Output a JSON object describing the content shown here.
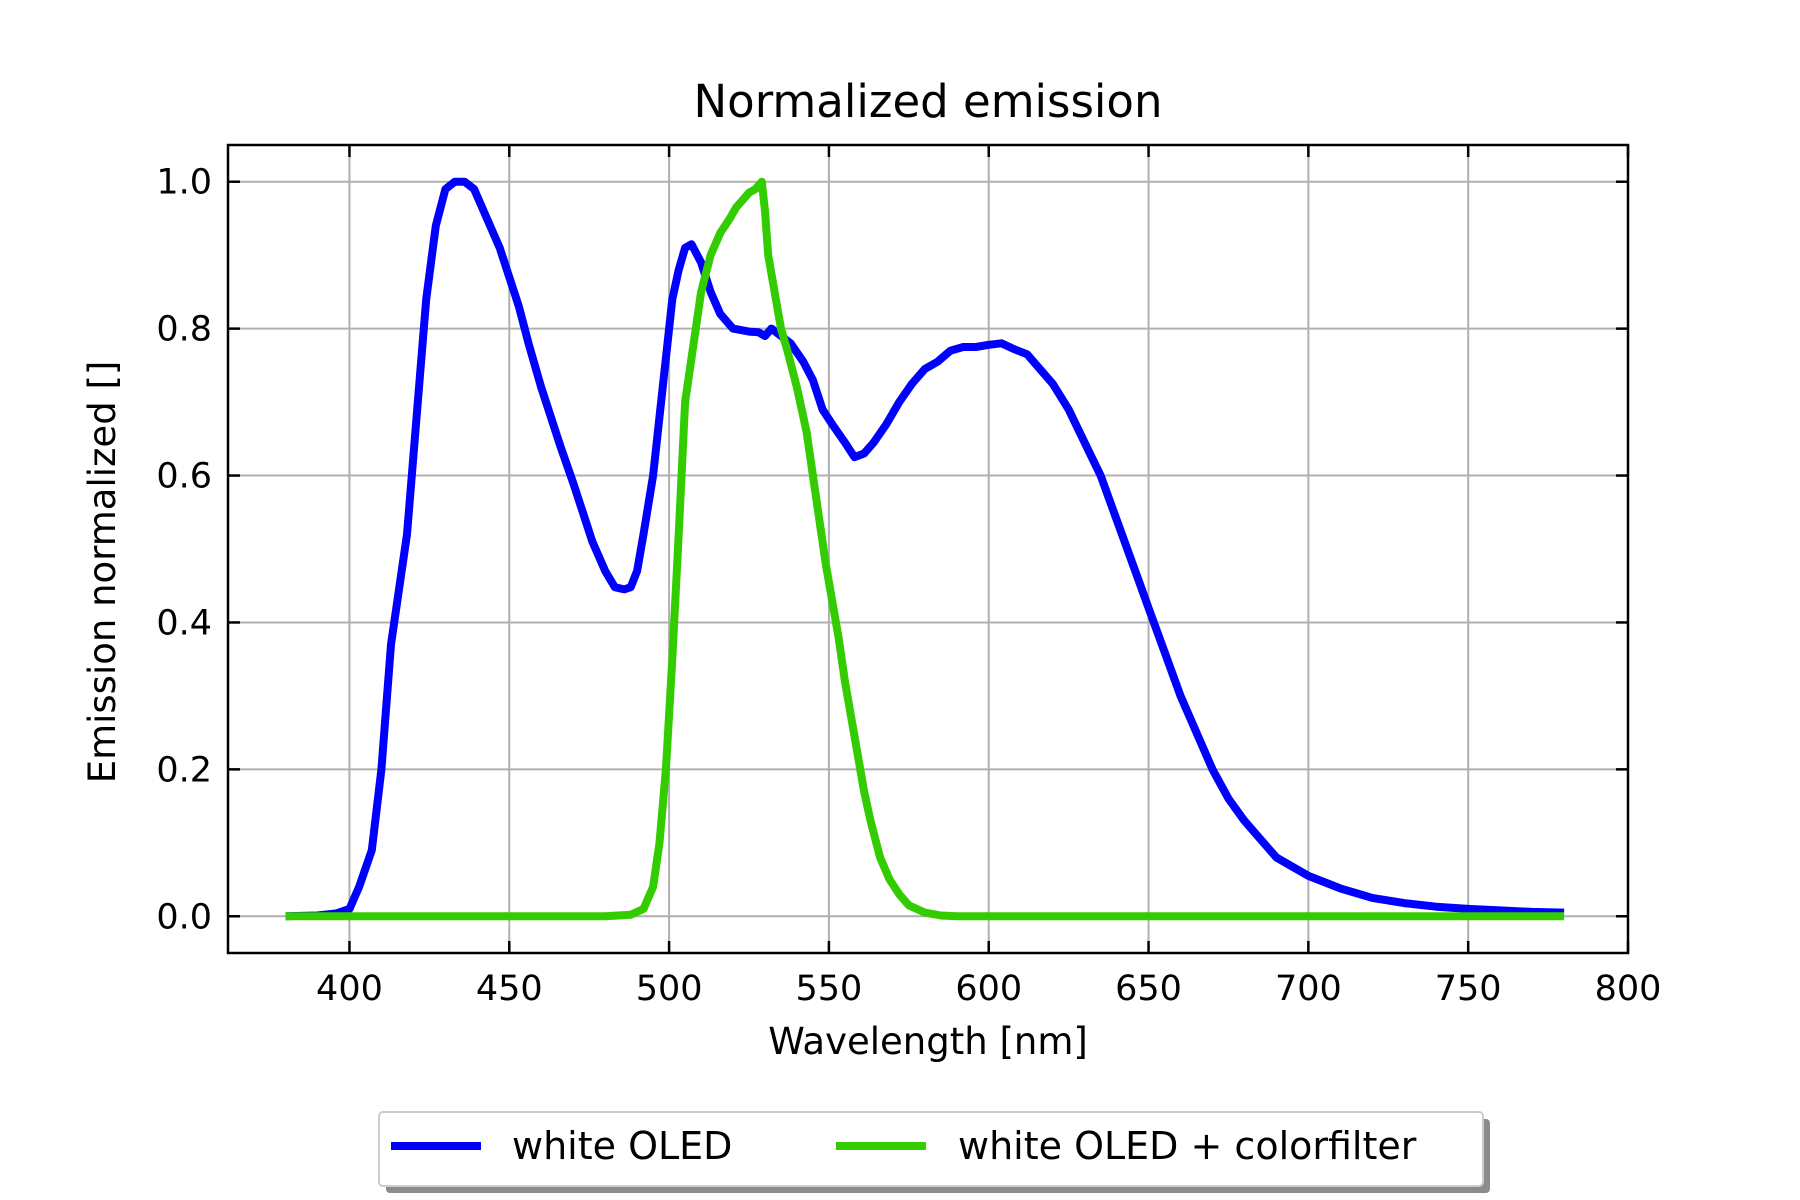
{
  "chart_data": {
    "type": "line",
    "title": "Normalized emission",
    "xlabel": "Wavelength [nm]",
    "ylabel": "Emission normalized []",
    "xlim": [
      362,
      800
    ],
    "ylim": [
      -0.05,
      1.05
    ],
    "xticks": [
      400,
      450,
      500,
      550,
      600,
      650,
      700,
      750,
      800
    ],
    "xtick_labels": [
      "400",
      "450",
      "500",
      "550",
      "600",
      "650",
      "700",
      "750",
      "800"
    ],
    "yticks": [
      0.0,
      0.2,
      0.4,
      0.6,
      0.8,
      1.0
    ],
    "ytick_labels": [
      "0.0",
      "0.2",
      "0.4",
      "0.6",
      "0.8",
      "1.0"
    ],
    "grid": true,
    "legend_position": "bottom-center",
    "series": [
      {
        "name": "white OLED",
        "color": "#0000ff",
        "x": [
          380,
          390,
          396,
          400,
          403,
          407,
          410,
          413,
          415,
          418,
          421,
          424,
          427,
          430,
          433,
          436,
          439,
          441,
          444,
          447,
          450,
          453,
          456,
          460,
          463,
          466,
          470,
          473,
          476,
          480,
          483,
          486,
          488,
          490,
          492,
          495,
          498,
          501,
          503,
          505,
          507,
          510,
          513,
          516,
          520,
          525,
          528,
          530,
          532,
          535,
          538,
          542,
          545,
          548,
          551,
          555,
          558,
          561,
          564,
          568,
          572,
          576,
          580,
          584,
          588,
          592,
          596,
          600,
          604,
          608,
          612,
          616,
          620,
          625,
          630,
          635,
          640,
          645,
          650,
          655,
          660,
          665,
          670,
          675,
          680,
          690,
          700,
          710,
          720,
          730,
          740,
          750,
          760,
          770,
          780
        ],
        "y": [
          0.0,
          0.001,
          0.004,
          0.01,
          0.04,
          0.09,
          0.2,
          0.37,
          0.43,
          0.52,
          0.68,
          0.84,
          0.94,
          0.99,
          1.0,
          1.0,
          0.99,
          0.97,
          0.94,
          0.91,
          0.87,
          0.83,
          0.78,
          0.72,
          0.68,
          0.64,
          0.59,
          0.55,
          0.51,
          0.47,
          0.448,
          0.445,
          0.448,
          0.47,
          0.52,
          0.6,
          0.72,
          0.84,
          0.88,
          0.91,
          0.915,
          0.89,
          0.85,
          0.82,
          0.8,
          0.796,
          0.795,
          0.79,
          0.8,
          0.79,
          0.78,
          0.755,
          0.73,
          0.69,
          0.67,
          0.645,
          0.625,
          0.63,
          0.645,
          0.67,
          0.7,
          0.725,
          0.745,
          0.755,
          0.77,
          0.775,
          0.775,
          0.778,
          0.78,
          0.772,
          0.765,
          0.745,
          0.725,
          0.69,
          0.645,
          0.6,
          0.54,
          0.48,
          0.42,
          0.36,
          0.3,
          0.25,
          0.2,
          0.16,
          0.13,
          0.08,
          0.055,
          0.038,
          0.025,
          0.018,
          0.013,
          0.01,
          0.008,
          0.006,
          0.005
        ]
      },
      {
        "name": "white OLED + colorfilter",
        "color": "#33cc00",
        "x": [
          380,
          480,
          488,
          492,
          495,
          497,
          499,
          501,
          503,
          505,
          507,
          510,
          513,
          516,
          519,
          521,
          523,
          525,
          527,
          529,
          530,
          531,
          533,
          535,
          537,
          540,
          543,
          545,
          547,
          549,
          551,
          553,
          555,
          557,
          559,
          561,
          563,
          566,
          569,
          572,
          575,
          580,
          585,
          590,
          600,
          620,
          650,
          700,
          750,
          780
        ],
        "y": [
          0.0,
          0.0,
          0.002,
          0.01,
          0.04,
          0.1,
          0.2,
          0.35,
          0.52,
          0.7,
          0.76,
          0.85,
          0.9,
          0.93,
          0.95,
          0.965,
          0.975,
          0.985,
          0.99,
          1.0,
          0.96,
          0.9,
          0.85,
          0.8,
          0.77,
          0.72,
          0.66,
          0.6,
          0.54,
          0.48,
          0.43,
          0.38,
          0.32,
          0.27,
          0.22,
          0.17,
          0.13,
          0.08,
          0.05,
          0.03,
          0.015,
          0.005,
          0.001,
          0.0,
          0.0,
          0.0,
          0.0,
          0.0,
          0.0,
          0.0
        ]
      }
    ]
  }
}
